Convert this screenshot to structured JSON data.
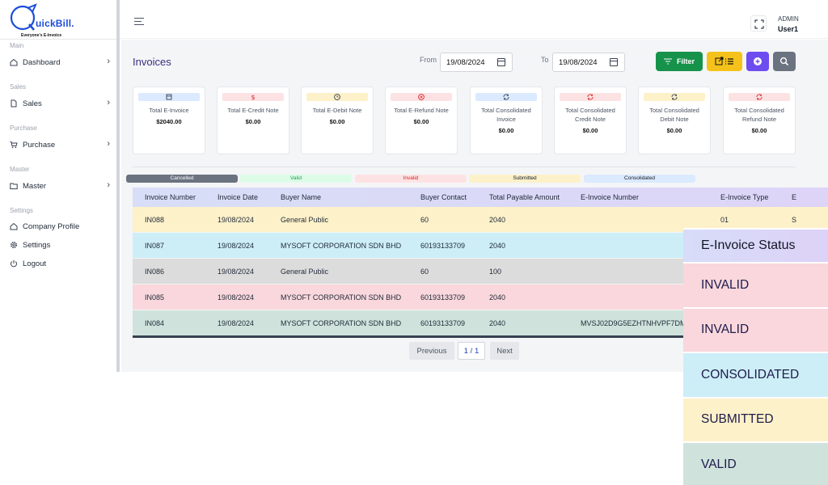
{
  "brand": {
    "name": "uickBill.",
    "tagline": "Everyone's E-Invoice"
  },
  "sidebar": {
    "sections": [
      {
        "label": "Main"
      },
      {
        "label": "Sales"
      },
      {
        "label": "Purchase"
      },
      {
        "label": "Master"
      },
      {
        "label": "Settings"
      }
    ],
    "items": [
      {
        "label": "Dashboard"
      },
      {
        "label": "Sales"
      },
      {
        "label": "Purchase"
      },
      {
        "label": "Master"
      },
      {
        "label": "Company Profile"
      },
      {
        "label": "Settings"
      },
      {
        "label": "Logout"
      }
    ]
  },
  "header": {
    "role": "ADMIN",
    "user": "User1"
  },
  "page": {
    "title": "Invoices",
    "from_label": "From",
    "from_date": "19/08/2024",
    "to_label": "To",
    "to_date": "19/08/2024",
    "filter_label": "Filter"
  },
  "summary_cards": [
    {
      "title": "Total E-Invoice",
      "value": "$2040.00",
      "icon": "calendar-icon",
      "color": "#dbeafe",
      "icon_color": "#374151"
    },
    {
      "title": "Total E-Credit Note",
      "value": "$0.00",
      "icon": "dollar-icon",
      "color": "#fde2e4",
      "icon_color": "#dc2626"
    },
    {
      "title": "Total E-Debit Note",
      "value": "$0.00",
      "icon": "clock-icon",
      "color": "#fdf1c9",
      "icon_color": "#374151"
    },
    {
      "title": "Total E-Refund Note",
      "value": "$0.00",
      "icon": "cancel-icon",
      "color": "#fde2e4",
      "icon_color": "#dc2626"
    },
    {
      "title": "Total Consolidated Invoice",
      "value": "$0.00",
      "icon": "refresh-icon",
      "color": "#dbeafe",
      "icon_color": "#374151"
    },
    {
      "title": "Total Consolidated Credit Note",
      "value": "$0.00",
      "icon": "refresh-icon",
      "color": "#fde2e4",
      "icon_color": "#dc2626"
    },
    {
      "title": "Total Consolidated Debit Note",
      "value": "$0.00",
      "icon": "refresh-icon",
      "color": "#fdf1c9",
      "icon_color": "#374151"
    },
    {
      "title": "Total Consolidated Refund Note",
      "value": "$0.00",
      "icon": "refresh-icon",
      "color": "#fde2e4",
      "icon_color": "#dc2626"
    }
  ],
  "legend": [
    {
      "label": "Cancelled",
      "bg": "#6b7280",
      "fg": "#ffffff"
    },
    {
      "label": "Valid",
      "bg": "#dcfce7",
      "fg": "#16a34a"
    },
    {
      "label": "Invalid",
      "bg": "#fde2e4",
      "fg": "#dc2626"
    },
    {
      "label": "Submitted",
      "bg": "#fdf1c9",
      "fg": "#111827"
    },
    {
      "label": "Consolidated",
      "bg": "#dbeafe",
      "fg": "#111827"
    }
  ],
  "table": {
    "columns": [
      "Invoice Number",
      "Invoice Date",
      "Buyer Name",
      "Buyer Contact",
      "Total Payable Amount",
      "E-Invoice Number",
      "E-Invoice Type",
      "E"
    ],
    "rows": [
      {
        "cells": [
          "IN088",
          "19/08/2024",
          "General Public",
          "60",
          "2040",
          "",
          "01",
          "S"
        ],
        "bg": "#fdf1c9"
      },
      {
        "cells": [
          "IN087",
          "19/08/2024",
          "MYSOFT CORPORATION SDN BHD",
          "60193133709",
          "2040",
          "",
          "",
          ""
        ],
        "bg": "#cdeef7"
      },
      {
        "cells": [
          "IN086",
          "19/08/2024",
          "General Public",
          "60",
          "100",
          "",
          "",
          ""
        ],
        "bg": "#dcdcdc"
      },
      {
        "cells": [
          "IN085",
          "19/08/2024",
          "MYSOFT CORPORATION SDN BHD",
          "60193133709",
          "2040",
          "",
          "",
          ""
        ],
        "bg": "#f9d7dc"
      },
      {
        "cells": [
          "IN084",
          "19/08/2024",
          "MYSOFT CORPORATION SDN BHD",
          "60193133709",
          "2040",
          "MVSJ02D9G5EZHTNHVPF7DM",
          "",
          ""
        ],
        "bg": "#cfe3dc"
      }
    ]
  },
  "pagination": {
    "prev": "Previous",
    "page": "1 / 1",
    "next": "Next"
  },
  "status_panel": {
    "title": "E-Invoice Status",
    "rows": [
      {
        "label": "INVALID",
        "bg": "#f9d7dc"
      },
      {
        "label": "INVALID",
        "bg": "#f9d7dc"
      },
      {
        "label": "CONSOLIDATED",
        "bg": "#cdeef7"
      },
      {
        "label": "SUBMITTED",
        "bg": "#fdf1c9"
      },
      {
        "label": "VALID",
        "bg": "#cfe3dc"
      }
    ]
  }
}
